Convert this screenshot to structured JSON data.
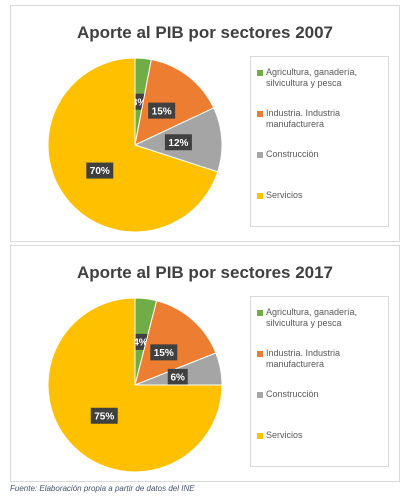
{
  "chart_data": [
    {
      "type": "pie",
      "title": "Aporte al PIB por sectores 2007",
      "categories": [
        "Agricultura, ganadería, silvicultura y pesca",
        "Industria. Industria manufacturera",
        "Construcción",
        "Servicios"
      ],
      "values": [
        3,
        15,
        12,
        70
      ],
      "value_labels": [
        "3%",
        "15%",
        "12%",
        "70%"
      ],
      "colors": [
        "#70ad47",
        "#ed7d31",
        "#a5a5a5",
        "#ffc000"
      ],
      "legend": "right"
    },
    {
      "type": "pie",
      "title": "Aporte al PIB por sectores 2017",
      "categories": [
        "Agricultura, ganadería, silvicultura y pesca",
        "Industria. Industria manufacturera",
        "Construcción",
        "Servicios"
      ],
      "values": [
        4,
        15,
        6,
        75
      ],
      "value_labels": [
        "4%",
        "15%",
        "6%",
        "75%"
      ],
      "colors": [
        "#70ad47",
        "#ed7d31",
        "#a5a5a5",
        "#ffc000"
      ],
      "legend": "right"
    }
  ],
  "source": "Fuente: Elaboración propia a partir de datos del INE"
}
